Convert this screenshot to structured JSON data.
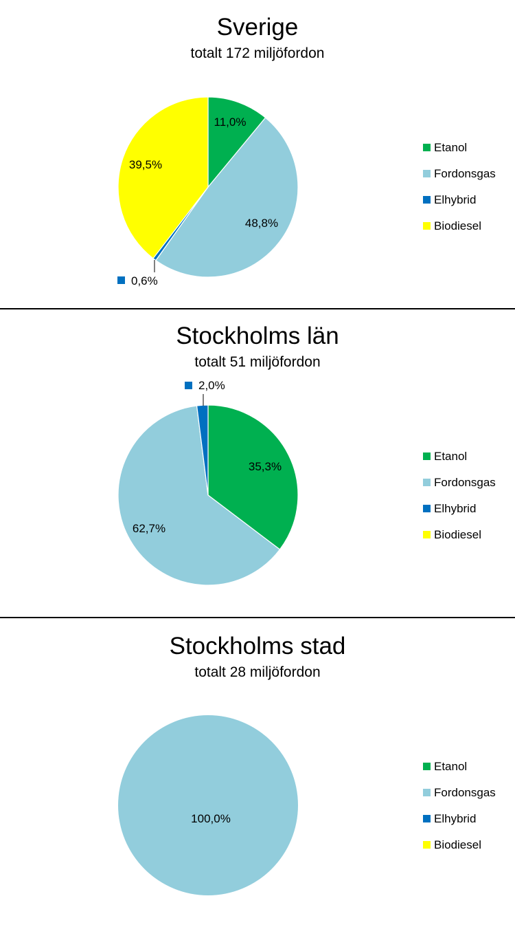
{
  "legend_items": [
    {
      "name": "Etanol",
      "color": "#00B050"
    },
    {
      "name": "Fordonsgas",
      "color": "#92CDDC"
    },
    {
      "name": "Elhybrid",
      "color": "#0070C0"
    },
    {
      "name": "Biodiesel",
      "color": "#FFFF00"
    }
  ],
  "chart_data": [
    {
      "type": "pie",
      "title": "Sverige",
      "subtitle": "totalt 172 miljöfordon",
      "categories": [
        "Etanol",
        "Fordonsgas",
        "Elhybrid",
        "Biodiesel"
      ],
      "values": [
        11.0,
        48.8,
        0.6,
        39.5
      ],
      "data_labels": [
        "11,0%",
        "48,8%",
        "0,6%",
        "39,5%"
      ],
      "legend_position": "right"
    },
    {
      "type": "pie",
      "title": "Stockholms län",
      "subtitle": "totalt 51 miljöfordon",
      "categories": [
        "Etanol",
        "Fordonsgas",
        "Elhybrid",
        "Biodiesel"
      ],
      "values": [
        35.3,
        62.7,
        2.0,
        0
      ],
      "data_labels": [
        "35,3%",
        "62,7%",
        "2,0%",
        ""
      ],
      "legend_position": "right"
    },
    {
      "type": "pie",
      "title": "Stockholms stad",
      "subtitle": "totalt 28 miljöfordon",
      "categories": [
        "Etanol",
        "Fordonsgas",
        "Elhybrid",
        "Biodiesel"
      ],
      "values": [
        0,
        100.0,
        0,
        0
      ],
      "data_labels": [
        "",
        "100,0%",
        "",
        ""
      ],
      "legend_position": "right"
    }
  ]
}
